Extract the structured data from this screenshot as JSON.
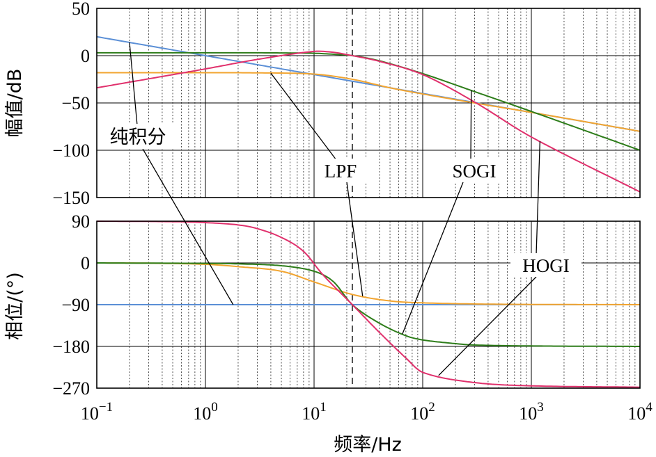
{
  "chart_data": [
    {
      "type": "line",
      "panel": "magnitude",
      "ylabel": "幅值/dB",
      "xscale": "log",
      "xlim": [
        0.1,
        10000
      ],
      "ylim": [
        -150,
        50
      ],
      "yticks": [
        50,
        0,
        -50,
        -100,
        -150
      ],
      "ytick_labels": [
        "50",
        "0",
        "−50",
        "−100",
        "−150"
      ],
      "grid": true,
      "marker_frequency": 22.5,
      "series": [
        {
          "key": "integrator",
          "color": "#5b8fd6",
          "x": [
            0.1,
            1,
            10,
            100,
            1000,
            10000
          ],
          "y": [
            20,
            0,
            -20,
            -40,
            -60,
            -80
          ]
        },
        {
          "key": "lpf",
          "color": "#f2a531",
          "x": [
            0.1,
            1,
            3,
            10,
            22.5,
            50,
            100,
            300,
            1000,
            10000
          ],
          "y": [
            -18,
            -18,
            -18.2,
            -19.5,
            -25,
            -34,
            -40.5,
            -50,
            -60,
            -80
          ]
        },
        {
          "key": "sogi",
          "color": "#2e7d1a",
          "x": [
            0.1,
            1,
            3,
            10,
            15,
            22.5,
            40,
            100,
            300,
            1000,
            10000
          ],
          "y": [
            3,
            3,
            3,
            2.5,
            1.5,
            0,
            -5.5,
            -19,
            -38,
            -59,
            -100
          ]
        },
        {
          "key": "hogi",
          "color": "#e0306c",
          "x": [
            0.1,
            0.3,
            1,
            3,
            10,
            15,
            22.5,
            40,
            100,
            300,
            1000,
            10000
          ],
          "y": [
            -34,
            -24.5,
            -14,
            -4,
            4.5,
            3.5,
            0,
            -6,
            -20,
            -49,
            -86,
            -144
          ]
        }
      ],
      "annotations": [
        {
          "text": "纯积分"
        },
        {
          "text": "LPF"
        },
        {
          "text": "SOGI"
        },
        {
          "text": "HOGI"
        }
      ]
    },
    {
      "type": "line",
      "panel": "phase",
      "ylabel": "相位/(°)",
      "xlabel": "频率/Hz",
      "xscale": "log",
      "xlim": [
        0.1,
        10000
      ],
      "ylim": [
        -270,
        90
      ],
      "yticks": [
        90,
        0,
        -90,
        -180,
        -270
      ],
      "ytick_labels": [
        "90",
        "0",
        "−90",
        "−180",
        "−270"
      ],
      "xticks": [
        0.1,
        1,
        10,
        100,
        1000,
        10000
      ],
      "xtick_labels": [
        {
          "base": "10",
          "exp": "−1"
        },
        {
          "base": "10",
          "exp": "0"
        },
        {
          "base": "10",
          "exp": "1"
        },
        {
          "base": "10",
          "exp": "2"
        },
        {
          "base": "10",
          "exp": "3"
        },
        {
          "base": "10",
          "exp": "4"
        }
      ],
      "grid": true,
      "marker_frequency": 22.5,
      "series": [
        {
          "key": "integrator",
          "color": "#5b8fd6",
          "x": [
            0.1,
            10000
          ],
          "y": [
            -90,
            -90
          ]
        },
        {
          "key": "lpf",
          "color": "#f2a531",
          "x": [
            0.1,
            0.3,
            1,
            2,
            5,
            10,
            22.5,
            50,
            100,
            300,
            1000,
            10000
          ],
          "y": [
            0,
            -0.5,
            -3,
            -8,
            -18,
            -41,
            -68,
            -82,
            -86,
            -88.5,
            -89.5,
            -90
          ]
        },
        {
          "key": "sogi",
          "color": "#2e7d1a",
          "x": [
            0.1,
            1,
            2,
            5,
            10,
            15,
            22.5,
            40,
            70,
            100,
            200,
            300,
            1000,
            10000
          ],
          "y": [
            0,
            -1,
            -2,
            -6,
            -18,
            -40,
            -90,
            -130,
            -157,
            -166,
            -174,
            -177,
            -179,
            -180
          ]
        },
        {
          "key": "hogi",
          "color": "#e0306c",
          "x": [
            0.1,
            0.5,
            1,
            2,
            3,
            5,
            8,
            12,
            22.5,
            40,
            70,
            100,
            300,
            1000,
            10000
          ],
          "y": [
            90,
            89,
            87,
            82,
            74,
            55,
            25,
            -25,
            -90,
            -150,
            -205,
            -236,
            -258,
            -265,
            -268
          ]
        }
      ]
    }
  ]
}
